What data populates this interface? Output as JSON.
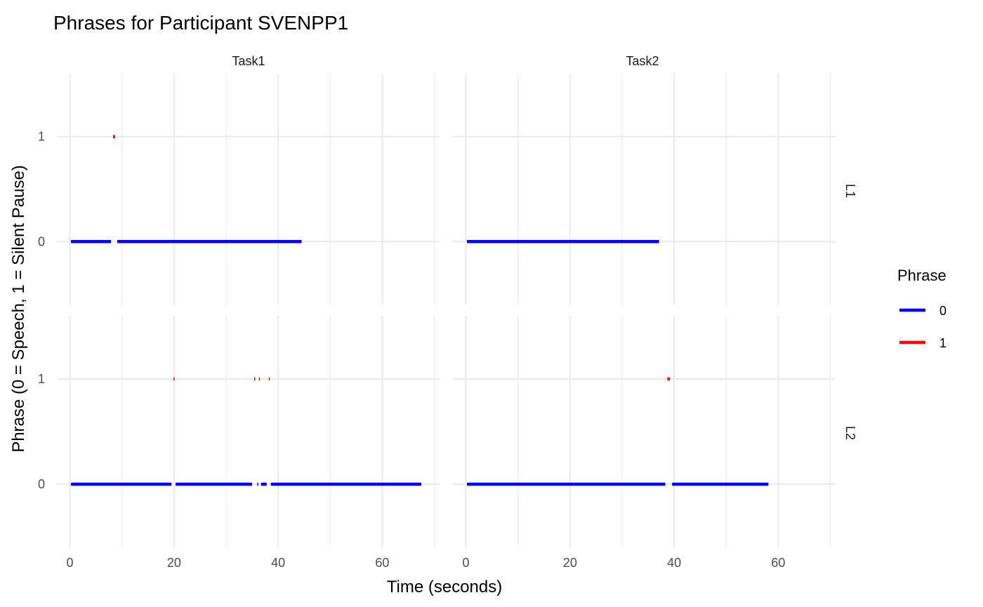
{
  "chart_data": {
    "type": "line",
    "title": "Phrases for Participant SVENPP1",
    "xlabel": "Time (seconds)",
    "ylabel": "Phrase (0 = Speech, 1 = Silent Pause)",
    "col_facets": [
      "Task1",
      "Task2"
    ],
    "row_facets": [
      "L1",
      "L2"
    ],
    "xlim": [
      -2.5,
      71
    ],
    "ylim": [
      -0.6,
      1.6
    ],
    "x_ticks": [
      0,
      20,
      40,
      60
    ],
    "x_tick_labels": [
      "0",
      "20",
      "40",
      "60"
    ],
    "y_ticks": [
      0,
      1
    ],
    "y_tick_labels": [
      "0",
      "1"
    ],
    "grid": true,
    "legend": {
      "title": "Phrase",
      "position": "right",
      "items": [
        {
          "label": "0",
          "color": "#0000ff"
        },
        {
          "label": "1",
          "color": "#ff0000"
        }
      ]
    },
    "panels": [
      {
        "col": "Task1",
        "row": "L1",
        "segments": [
          {
            "phrase": 0,
            "start": 0.0,
            "end": 8.1
          },
          {
            "phrase": 1,
            "start": 8.1,
            "end": 8.9
          },
          {
            "phrase": 0,
            "start": 8.9,
            "end": 44.7
          }
        ]
      },
      {
        "col": "Task2",
        "row": "L1",
        "segments": [
          {
            "phrase": 0,
            "start": 0.0,
            "end": 37.3
          }
        ]
      },
      {
        "col": "Task1",
        "row": "L2",
        "segments": [
          {
            "phrase": 0,
            "start": 0.0,
            "end": 19.7
          },
          {
            "phrase": 1,
            "start": 19.7,
            "end": 20.1
          },
          {
            "phrase": 0,
            "start": 20.1,
            "end": 35.2
          },
          {
            "phrase": 1,
            "start": 35.2,
            "end": 35.8
          },
          {
            "phrase": 0,
            "start": 35.8,
            "end": 36.1
          },
          {
            "phrase": 1,
            "start": 36.1,
            "end": 36.5
          },
          {
            "phrase": 0,
            "start": 36.5,
            "end": 38.0
          },
          {
            "phrase": 1,
            "start": 38.0,
            "end": 38.4
          },
          {
            "phrase": 0,
            "start": 38.4,
            "end": 67.7
          }
        ]
      },
      {
        "col": "Task2",
        "row": "L2",
        "segments": [
          {
            "phrase": 0,
            "start": 0.0,
            "end": 38.5
          },
          {
            "phrase": 1,
            "start": 38.5,
            "end": 39.4
          },
          {
            "phrase": 0,
            "start": 39.4,
            "end": 58.3
          }
        ]
      }
    ]
  }
}
